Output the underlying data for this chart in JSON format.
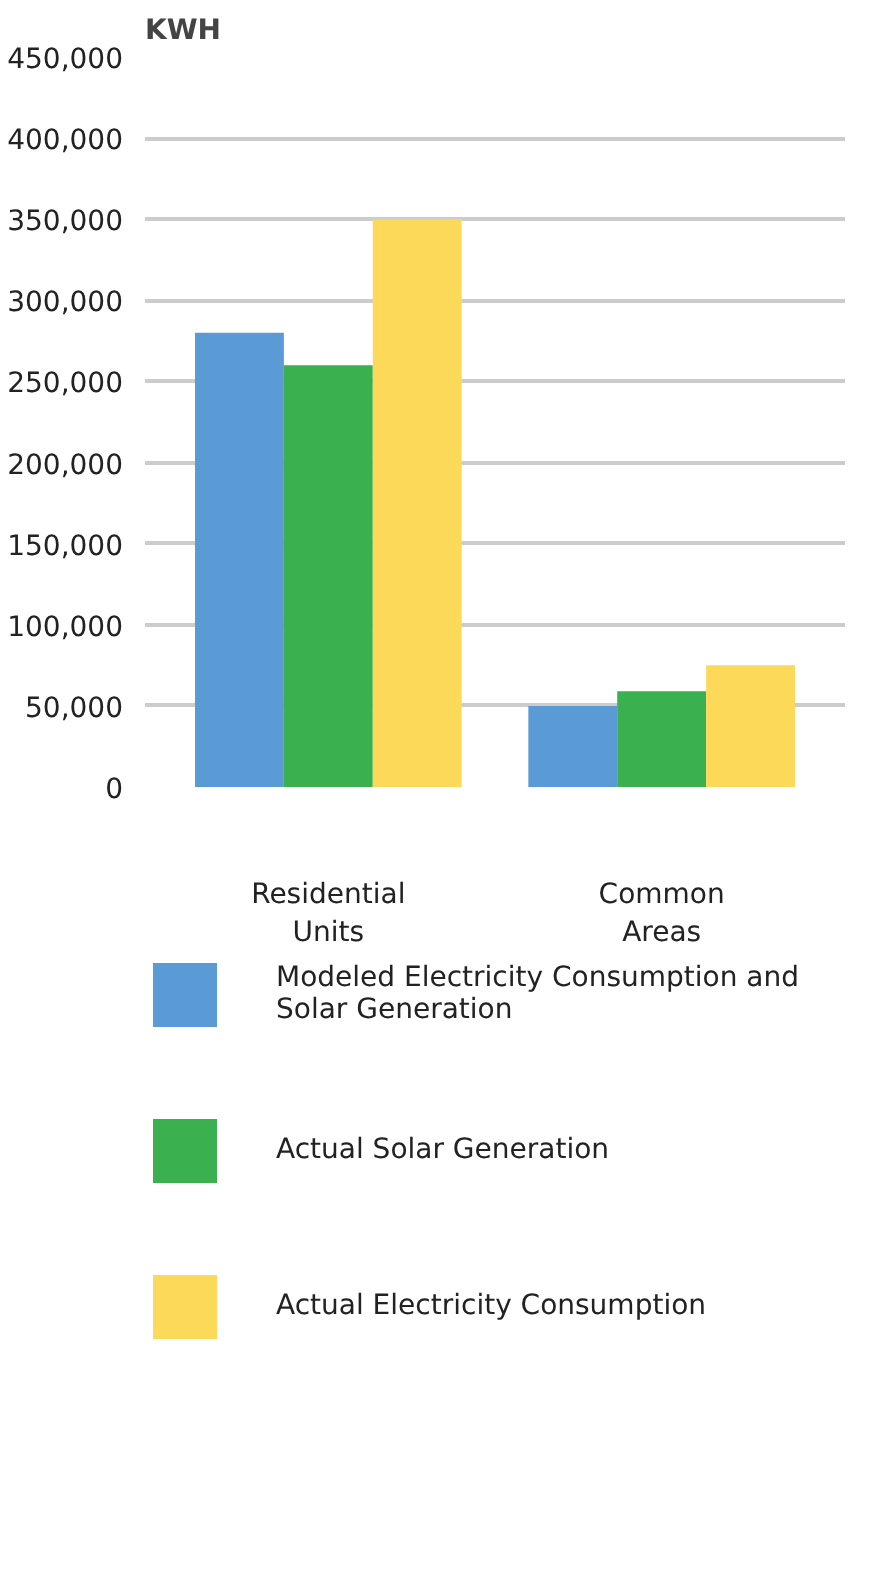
{
  "chart_data": {
    "type": "bar",
    "ylabel": "KWH",
    "categories": [
      "Residential Units",
      "Common Areas"
    ],
    "series": [
      {
        "name": "Modeled Electricity Consumption and Solar Generation",
        "color": "#5b9bd5",
        "values": [
          280000,
          50000
        ]
      },
      {
        "name": "Actual Solar Generation",
        "color": "#3ab04f",
        "values": [
          260000,
          59000
        ]
      },
      {
        "name": "Actual Electricity Consumption",
        "color": "#fdd95a",
        "values": [
          350000,
          75000
        ]
      }
    ],
    "ylim": [
      0,
      450000
    ],
    "yticks": [
      0,
      {
        "value": 50000,
        "label": "50,000"
      },
      {
        "value": 100000,
        "label": "100,000"
      },
      {
        "value": 150000,
        "label": "150,000"
      },
      {
        "value": 200000,
        "label": "200,000"
      },
      {
        "value": 250000,
        "label": "250,000"
      },
      {
        "value": 300000,
        "label": "300,000"
      },
      {
        "value": 350000,
        "label": "350,000"
      },
      {
        "value": 400000,
        "label": "400,000"
      },
      {
        "value": 450000,
        "label": "450,000"
      }
    ],
    "grid": "y",
    "legend": "bottom"
  }
}
